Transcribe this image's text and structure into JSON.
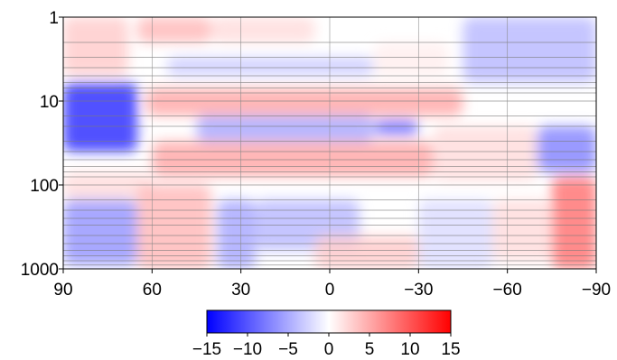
{
  "chart_data": [
    {
      "type": "heatmap",
      "title": "",
      "xlabel": "",
      "ylabel": "",
      "x_ticks": [
        "90",
        "60",
        "30",
        "0",
        "−30",
        "−60",
        "−90"
      ],
      "x_tick_values": [
        90,
        60,
        30,
        0,
        -30,
        -60,
        -90
      ],
      "xlim": [
        90,
        -90
      ],
      "y_ticks": [
        "1",
        "10",
        "100",
        "1000"
      ],
      "y_tick_values": [
        1,
        10,
        100,
        1000
      ],
      "ylim": [
        1,
        1000
      ],
      "y_scale": "log",
      "y_inverted": true,
      "grid": true,
      "horizontal_grid_levels": [
        1,
        2,
        3,
        4,
        5,
        6,
        7,
        8,
        10,
        15,
        20,
        30,
        40,
        50,
        60,
        70,
        80,
        100,
        150,
        200,
        250,
        300,
        400,
        500,
        600,
        700,
        800,
        900,
        1000
      ],
      "vertical_grid_values": [
        90,
        60,
        30,
        0,
        -30,
        -60,
        -90
      ],
      "colormap": "blue-white-red",
      "regions": [
        {
          "x": [
            90,
            68
          ],
          "y": [
            1,
            5
          ],
          "value": 3
        },
        {
          "x": [
            65,
            40
          ],
          "y": [
            1,
            2
          ],
          "value": 4
        },
        {
          "x": [
            40,
            5
          ],
          "y": [
            1,
            2
          ],
          "value": 2
        },
        {
          "x": [
            55,
            -15
          ],
          "y": [
            3,
            5
          ],
          "value": -3
        },
        {
          "x": [
            -15,
            -40
          ],
          "y": [
            2,
            5
          ],
          "value": 1
        },
        {
          "x": [
            -45,
            -90
          ],
          "y": [
            1,
            6
          ],
          "value": -4
        },
        {
          "x": [
            90,
            65
          ],
          "y": [
            6,
            40
          ],
          "value": -12
        },
        {
          "x": [
            62,
            -45
          ],
          "y": [
            7,
            15
          ],
          "value": 5
        },
        {
          "x": [
            45,
            -15
          ],
          "y": [
            15,
            30
          ],
          "value": -5
        },
        {
          "x": [
            -15,
            -30
          ],
          "y": [
            17,
            25
          ],
          "value": -9
        },
        {
          "x": [
            60,
            -35
          ],
          "y": [
            30,
            80
          ],
          "value": 5
        },
        {
          "x": [
            -35,
            -70
          ],
          "y": [
            20,
            90
          ],
          "value": 2
        },
        {
          "x": [
            -70,
            -90
          ],
          "y": [
            20,
            70
          ],
          "value": -7
        },
        {
          "x": [
            90,
            60
          ],
          "y": [
            70,
            150
          ],
          "value": 2
        },
        {
          "x": [
            90,
            65
          ],
          "y": [
            150,
            900
          ],
          "value": -6
        },
        {
          "x": [
            65,
            40
          ],
          "y": [
            100,
            1000
          ],
          "value": 4
        },
        {
          "x": [
            38,
            25
          ],
          "y": [
            150,
            1000
          ],
          "value": -5
        },
        {
          "x": [
            25,
            -10
          ],
          "y": [
            150,
            600
          ],
          "value": -4
        },
        {
          "x": [
            5,
            -30
          ],
          "y": [
            400,
            1000
          ],
          "value": 3
        },
        {
          "x": [
            -30,
            -55
          ],
          "y": [
            150,
            1000
          ],
          "value": -2
        },
        {
          "x": [
            -55,
            -75
          ],
          "y": [
            150,
            800
          ],
          "value": 2
        },
        {
          "x": [
            -75,
            -90
          ],
          "y": [
            80,
            1000
          ],
          "value": 8
        }
      ]
    },
    {
      "type": "colorbar",
      "ticks": [
        "−15",
        "−10",
        "−5",
        "0",
        "5",
        "10",
        "15"
      ],
      "tick_values": [
        -15,
        -10,
        -5,
        0,
        5,
        10,
        15
      ],
      "range": [
        -15,
        15
      ],
      "low_color": "#0000ff",
      "mid_color": "#ffffff",
      "high_color": "#ff0000"
    }
  ]
}
